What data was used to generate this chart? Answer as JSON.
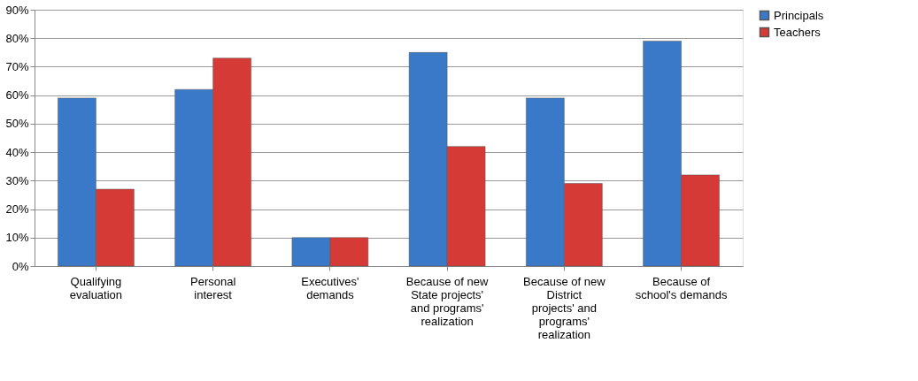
{
  "chart_data": {
    "type": "bar",
    "categories": [
      "Qualifying evaluation",
      "Personal interest",
      "Executives' demands",
      "Because of new State projects' and programs' realization",
      "Because of new District projects' and programs' realization",
      "Because of school's demands"
    ],
    "series": [
      {
        "name": "Principals",
        "color": "#3a78c8",
        "values": [
          59,
          62,
          10,
          75,
          59,
          79
        ]
      },
      {
        "name": "Teachers",
        "color": "#d63a36",
        "values": [
          27,
          73,
          10,
          42,
          29,
          32
        ]
      }
    ],
    "ylim": [
      0,
      90
    ],
    "yticks": [
      {
        "value": 0,
        "label": "0%"
      },
      {
        "value": 10,
        "label": "10%"
      },
      {
        "value": 20,
        "label": "20%"
      },
      {
        "value": 30,
        "label": "30%"
      },
      {
        "value": 40,
        "label": "40%"
      },
      {
        "value": 50,
        "label": "50%"
      },
      {
        "value": 60,
        "label": "60%"
      },
      {
        "value": 70,
        "label": "70%"
      },
      {
        "value": 80,
        "label": "80%"
      },
      {
        "value": 90,
        "label": "90%"
      }
    ],
    "grid": "y",
    "legend": "right"
  }
}
